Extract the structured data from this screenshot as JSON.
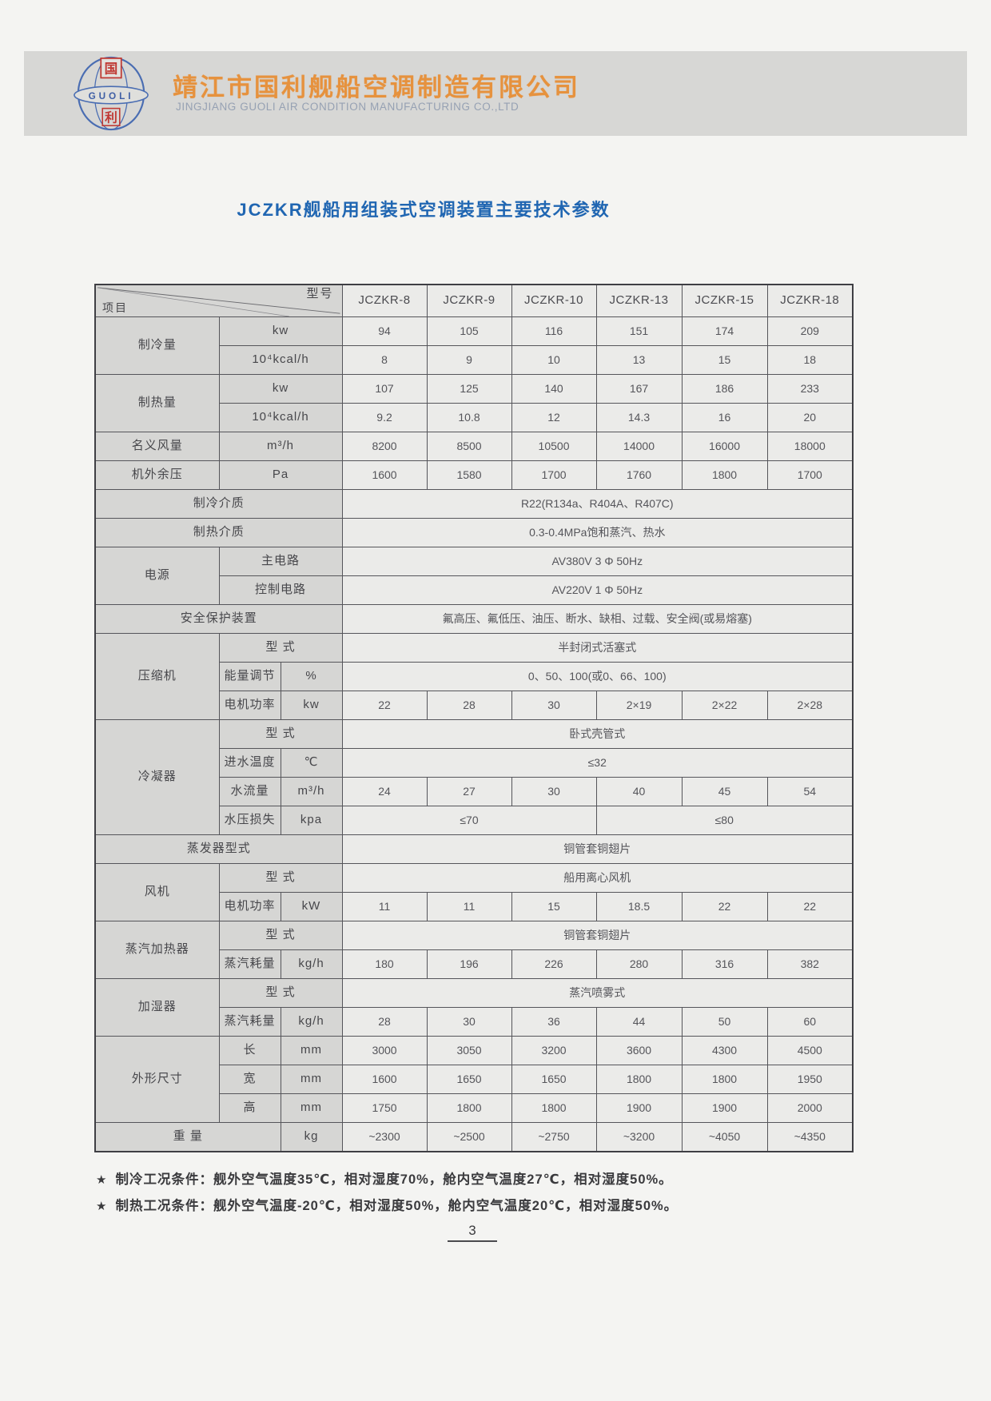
{
  "header": {
    "company_cn": "靖江市国利舰船空调制造有限公司",
    "company_en": "JINGJIANG GUOLI AIR CONDITION MANUFACTURING CO.,LTD",
    "logo": {
      "cn_top": "国",
      "cn_bottom": "利",
      "en_band": "GUOLI"
    }
  },
  "title": "JCZKR舰船用组装式空调装置主要技术参数",
  "colors": {
    "company_orange": "#e6923e",
    "title_blue": "#2066b2",
    "logo_blue": "#4a6db2",
    "logo_red": "#c03a34",
    "band_gray": "#d7d7d5",
    "label_cell_gray": "#d6d6d4"
  },
  "table": {
    "corner": {
      "left": "项目",
      "right": "型号"
    },
    "models": [
      "JCZKR-8",
      "JCZKR-9",
      "JCZKR-10",
      "JCZKR-13",
      "JCZKR-15",
      "JCZKR-18"
    ],
    "rows": [
      {
        "cells": [
          {
            "t": "制冷量",
            "r": 2,
            "lb": 1
          },
          {
            "t": "kw",
            "c": 2,
            "lb": 1
          },
          {
            "t": "94"
          },
          {
            "t": "105"
          },
          {
            "t": "116"
          },
          {
            "t": "151"
          },
          {
            "t": "174"
          },
          {
            "t": "209"
          }
        ]
      },
      {
        "cells": [
          {
            "t": "10⁴kcal/h",
            "c": 2,
            "lb": 1
          },
          {
            "t": "8"
          },
          {
            "t": "9"
          },
          {
            "t": "10"
          },
          {
            "t": "13"
          },
          {
            "t": "15"
          },
          {
            "t": "18"
          }
        ]
      },
      {
        "cells": [
          {
            "t": "制热量",
            "r": 2,
            "lb": 1
          },
          {
            "t": "kw",
            "c": 2,
            "lb": 1
          },
          {
            "t": "107"
          },
          {
            "t": "125"
          },
          {
            "t": "140"
          },
          {
            "t": "167"
          },
          {
            "t": "186"
          },
          {
            "t": "233"
          }
        ]
      },
      {
        "cells": [
          {
            "t": "10⁴kcal/h",
            "c": 2,
            "lb": 1
          },
          {
            "t": "9.2"
          },
          {
            "t": "10.8"
          },
          {
            "t": "12"
          },
          {
            "t": "14.3"
          },
          {
            "t": "16"
          },
          {
            "t": "20"
          }
        ]
      },
      {
        "cells": [
          {
            "t": "名义风量",
            "lb": 1
          },
          {
            "t": "m³/h",
            "c": 2,
            "lb": 1
          },
          {
            "t": "8200"
          },
          {
            "t": "8500"
          },
          {
            "t": "10500"
          },
          {
            "t": "14000"
          },
          {
            "t": "16000"
          },
          {
            "t": "18000"
          }
        ]
      },
      {
        "cells": [
          {
            "t": "机外余压",
            "lb": 1
          },
          {
            "t": "Pa",
            "c": 2,
            "lb": 1
          },
          {
            "t": "1600"
          },
          {
            "t": "1580"
          },
          {
            "t": "1700"
          },
          {
            "t": "1760"
          },
          {
            "t": "1800"
          },
          {
            "t": "1700"
          }
        ]
      },
      {
        "cells": [
          {
            "t": "制冷介质",
            "c": 3,
            "lb": 1
          },
          {
            "t": "R22(R134a、R404A、R407C)",
            "c": 6
          }
        ]
      },
      {
        "cells": [
          {
            "t": "制热介质",
            "c": 3,
            "lb": 1
          },
          {
            "t": "0.3-0.4MPa饱和蒸汽、热水",
            "c": 6
          }
        ]
      },
      {
        "cells": [
          {
            "t": "电源",
            "r": 2,
            "lb": 1
          },
          {
            "t": "主电路",
            "c": 2,
            "lb": 1
          },
          {
            "t": "AV380V 3 Φ 50Hz",
            "c": 6
          }
        ]
      },
      {
        "cells": [
          {
            "t": "控制电路",
            "c": 2,
            "lb": 1
          },
          {
            "t": "AV220V 1 Φ 50Hz",
            "c": 6
          }
        ]
      },
      {
        "cells": [
          {
            "t": "安全保护装置",
            "c": 3,
            "lb": 1
          },
          {
            "t": "氟高压、氟低压、油压、断水、缺相、过载、安全阀(或易熔塞)",
            "c": 6
          }
        ]
      },
      {
        "cells": [
          {
            "t": "压缩机",
            "r": 3,
            "lb": 1
          },
          {
            "t": "型 式",
            "c": 2,
            "lb": 1
          },
          {
            "t": "半封闭式活塞式",
            "c": 6
          }
        ]
      },
      {
        "cells": [
          {
            "t": "能量调节",
            "lb": 1
          },
          {
            "t": "%",
            "lb": 1
          },
          {
            "t": "0、50、100(或0、66、100)",
            "c": 6
          }
        ]
      },
      {
        "cells": [
          {
            "t": "电机功率",
            "lb": 1
          },
          {
            "t": "kw",
            "lb": 1
          },
          {
            "t": "22"
          },
          {
            "t": "28"
          },
          {
            "t": "30"
          },
          {
            "t": "2×19"
          },
          {
            "t": "2×22"
          },
          {
            "t": "2×28"
          }
        ]
      },
      {
        "cells": [
          {
            "t": "冷凝器",
            "r": 4,
            "lb": 1
          },
          {
            "t": "型 式",
            "c": 2,
            "lb": 1
          },
          {
            "t": "卧式壳管式",
            "c": 6
          }
        ]
      },
      {
        "cells": [
          {
            "t": "进水温度",
            "lb": 1
          },
          {
            "t": "℃",
            "lb": 1
          },
          {
            "t": "≤32",
            "c": 6
          }
        ]
      },
      {
        "cells": [
          {
            "t": "水流量",
            "lb": 1
          },
          {
            "t": "m³/h",
            "lb": 1
          },
          {
            "t": "24"
          },
          {
            "t": "27"
          },
          {
            "t": "30"
          },
          {
            "t": "40"
          },
          {
            "t": "45"
          },
          {
            "t": "54"
          }
        ]
      },
      {
        "cells": [
          {
            "t": "水压损失",
            "lb": 1
          },
          {
            "t": "kpa",
            "lb": 1
          },
          {
            "t": "≤70",
            "c": 3
          },
          {
            "t": "≤80",
            "c": 3
          }
        ]
      },
      {
        "cells": [
          {
            "t": "蒸发器型式",
            "c": 3,
            "lb": 1
          },
          {
            "t": "铜管套铜翅片",
            "c": 6
          }
        ]
      },
      {
        "cells": [
          {
            "t": "风机",
            "r": 2,
            "lb": 1
          },
          {
            "t": "型 式",
            "c": 2,
            "lb": 1
          },
          {
            "t": "船用离心风机",
            "c": 6
          }
        ]
      },
      {
        "cells": [
          {
            "t": "电机功率",
            "lb": 1
          },
          {
            "t": "kW",
            "lb": 1
          },
          {
            "t": "11"
          },
          {
            "t": "11"
          },
          {
            "t": "15"
          },
          {
            "t": "18.5"
          },
          {
            "t": "22"
          },
          {
            "t": "22"
          }
        ]
      },
      {
        "cells": [
          {
            "t": "蒸汽加热器",
            "r": 2,
            "lb": 1
          },
          {
            "t": "型 式",
            "c": 2,
            "lb": 1
          },
          {
            "t": "铜管套铜翅片",
            "c": 6
          }
        ]
      },
      {
        "cells": [
          {
            "t": "蒸汽耗量",
            "lb": 1
          },
          {
            "t": "kg/h",
            "lb": 1
          },
          {
            "t": "180"
          },
          {
            "t": "196"
          },
          {
            "t": "226"
          },
          {
            "t": "280"
          },
          {
            "t": "316"
          },
          {
            "t": "382"
          }
        ]
      },
      {
        "cells": [
          {
            "t": "加湿器",
            "r": 2,
            "lb": 1
          },
          {
            "t": "型 式",
            "c": 2,
            "lb": 1
          },
          {
            "t": "蒸汽喷雾式",
            "c": 6
          }
        ]
      },
      {
        "cells": [
          {
            "t": "蒸汽耗量",
            "lb": 1
          },
          {
            "t": "kg/h",
            "lb": 1
          },
          {
            "t": "28"
          },
          {
            "t": "30"
          },
          {
            "t": "36"
          },
          {
            "t": "44"
          },
          {
            "t": "50"
          },
          {
            "t": "60"
          }
        ]
      },
      {
        "cells": [
          {
            "t": "外形尺寸",
            "r": 3,
            "lb": 1
          },
          {
            "t": "长",
            "lb": 1
          },
          {
            "t": "mm",
            "lb": 1
          },
          {
            "t": "3000"
          },
          {
            "t": "3050"
          },
          {
            "t": "3200"
          },
          {
            "t": "3600"
          },
          {
            "t": "4300"
          },
          {
            "t": "4500"
          }
        ]
      },
      {
        "cells": [
          {
            "t": "宽",
            "lb": 1
          },
          {
            "t": "mm",
            "lb": 1
          },
          {
            "t": "1600"
          },
          {
            "t": "1650"
          },
          {
            "t": "1650"
          },
          {
            "t": "1800"
          },
          {
            "t": "1800"
          },
          {
            "t": "1950"
          }
        ]
      },
      {
        "cells": [
          {
            "t": "高",
            "lb": 1
          },
          {
            "t": "mm",
            "lb": 1
          },
          {
            "t": "1750"
          },
          {
            "t": "1800"
          },
          {
            "t": "1800"
          },
          {
            "t": "1900"
          },
          {
            "t": "1900"
          },
          {
            "t": "2000"
          }
        ]
      },
      {
        "cells": [
          {
            "t": "重  量",
            "c": 2,
            "lb": 1
          },
          {
            "t": "kg",
            "lb": 1
          },
          {
            "t": "~2300"
          },
          {
            "t": "~2500"
          },
          {
            "t": "~2750"
          },
          {
            "t": "~3200"
          },
          {
            "t": "~4050"
          },
          {
            "t": "~4350"
          }
        ]
      }
    ]
  },
  "notes": [
    {
      "star": "★",
      "text": "制冷工况条件：舰外空气温度35℃，相对湿度70%，舱内空气温度27℃，相对湿度50%。"
    },
    {
      "star": "★",
      "text": "制热工况条件：舰外空气温度-20℃，相对湿度50%，舱内空气温度20℃，相对湿度50%。"
    }
  ],
  "page_number": "3"
}
